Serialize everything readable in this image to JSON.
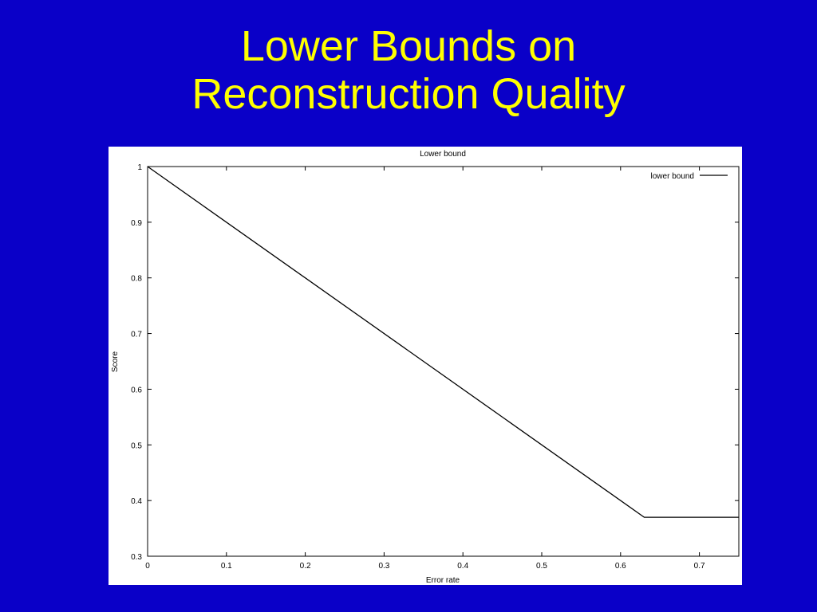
{
  "slide": {
    "title_line1": "Lower Bounds on",
    "title_line2": "Reconstruction Quality",
    "title_color": "#ffff00",
    "background_color": "#0a00c8"
  },
  "chart_data": {
    "type": "line",
    "title": "Lower bound",
    "xlabel": "Error rate",
    "ylabel": "Score",
    "xlim": [
      0,
      0.75
    ],
    "ylim": [
      0.3,
      1
    ],
    "xticks": [
      0,
      0.1,
      0.2,
      0.3,
      0.4,
      0.5,
      0.6,
      0.7
    ],
    "xtick_labels": [
      "0",
      "0.1",
      "0.2",
      "0.3",
      "0.4",
      "0.5",
      "0.6",
      "0.7"
    ],
    "yticks": [
      0.3,
      0.4,
      0.5,
      0.6,
      0.7,
      0.8,
      0.9,
      1
    ],
    "ytick_labels": [
      "0.3",
      "0.4",
      "0.5",
      "0.6",
      "0.7",
      "0.8",
      "0.9",
      "1"
    ],
    "grid": false,
    "legend_position": "top-right",
    "series": [
      {
        "name": "lower bound",
        "color": "#000000",
        "x": [
          0,
          0.63,
          0.75
        ],
        "y": [
          1,
          0.37,
          0.37
        ]
      }
    ]
  }
}
